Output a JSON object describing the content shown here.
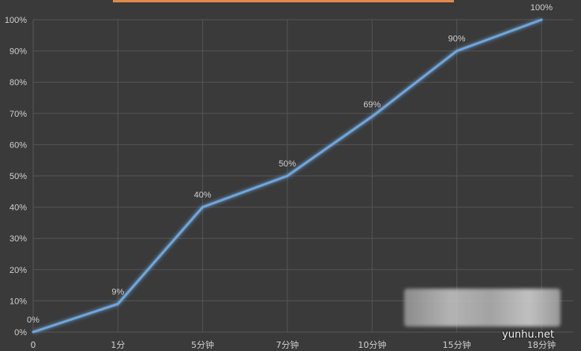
{
  "chart_data": {
    "type": "line",
    "categories": [
      "0",
      "1分",
      "5分钟",
      "7分钟",
      "10分钟",
      "15分钟",
      "18分钟"
    ],
    "series": [
      {
        "values": [
          0,
          9,
          40,
          50,
          69,
          90,
          100
        ]
      }
    ],
    "data_labels": [
      "0%",
      "9%",
      "40%",
      "50%",
      "69%",
      "90%",
      "100%"
    ],
    "y_ticks": [
      "0%",
      "10%",
      "20%",
      "30%",
      "40%",
      "50%",
      "60%",
      "70%",
      "80%",
      "90%",
      "100%"
    ],
    "ylim": [
      0,
      100
    ],
    "grid": true,
    "colors": {
      "background": "#3a3a3a",
      "grid": "#555555",
      "line": "#6ea6dc",
      "text": "#cfcfcf"
    }
  },
  "watermark": "yunhu.net"
}
